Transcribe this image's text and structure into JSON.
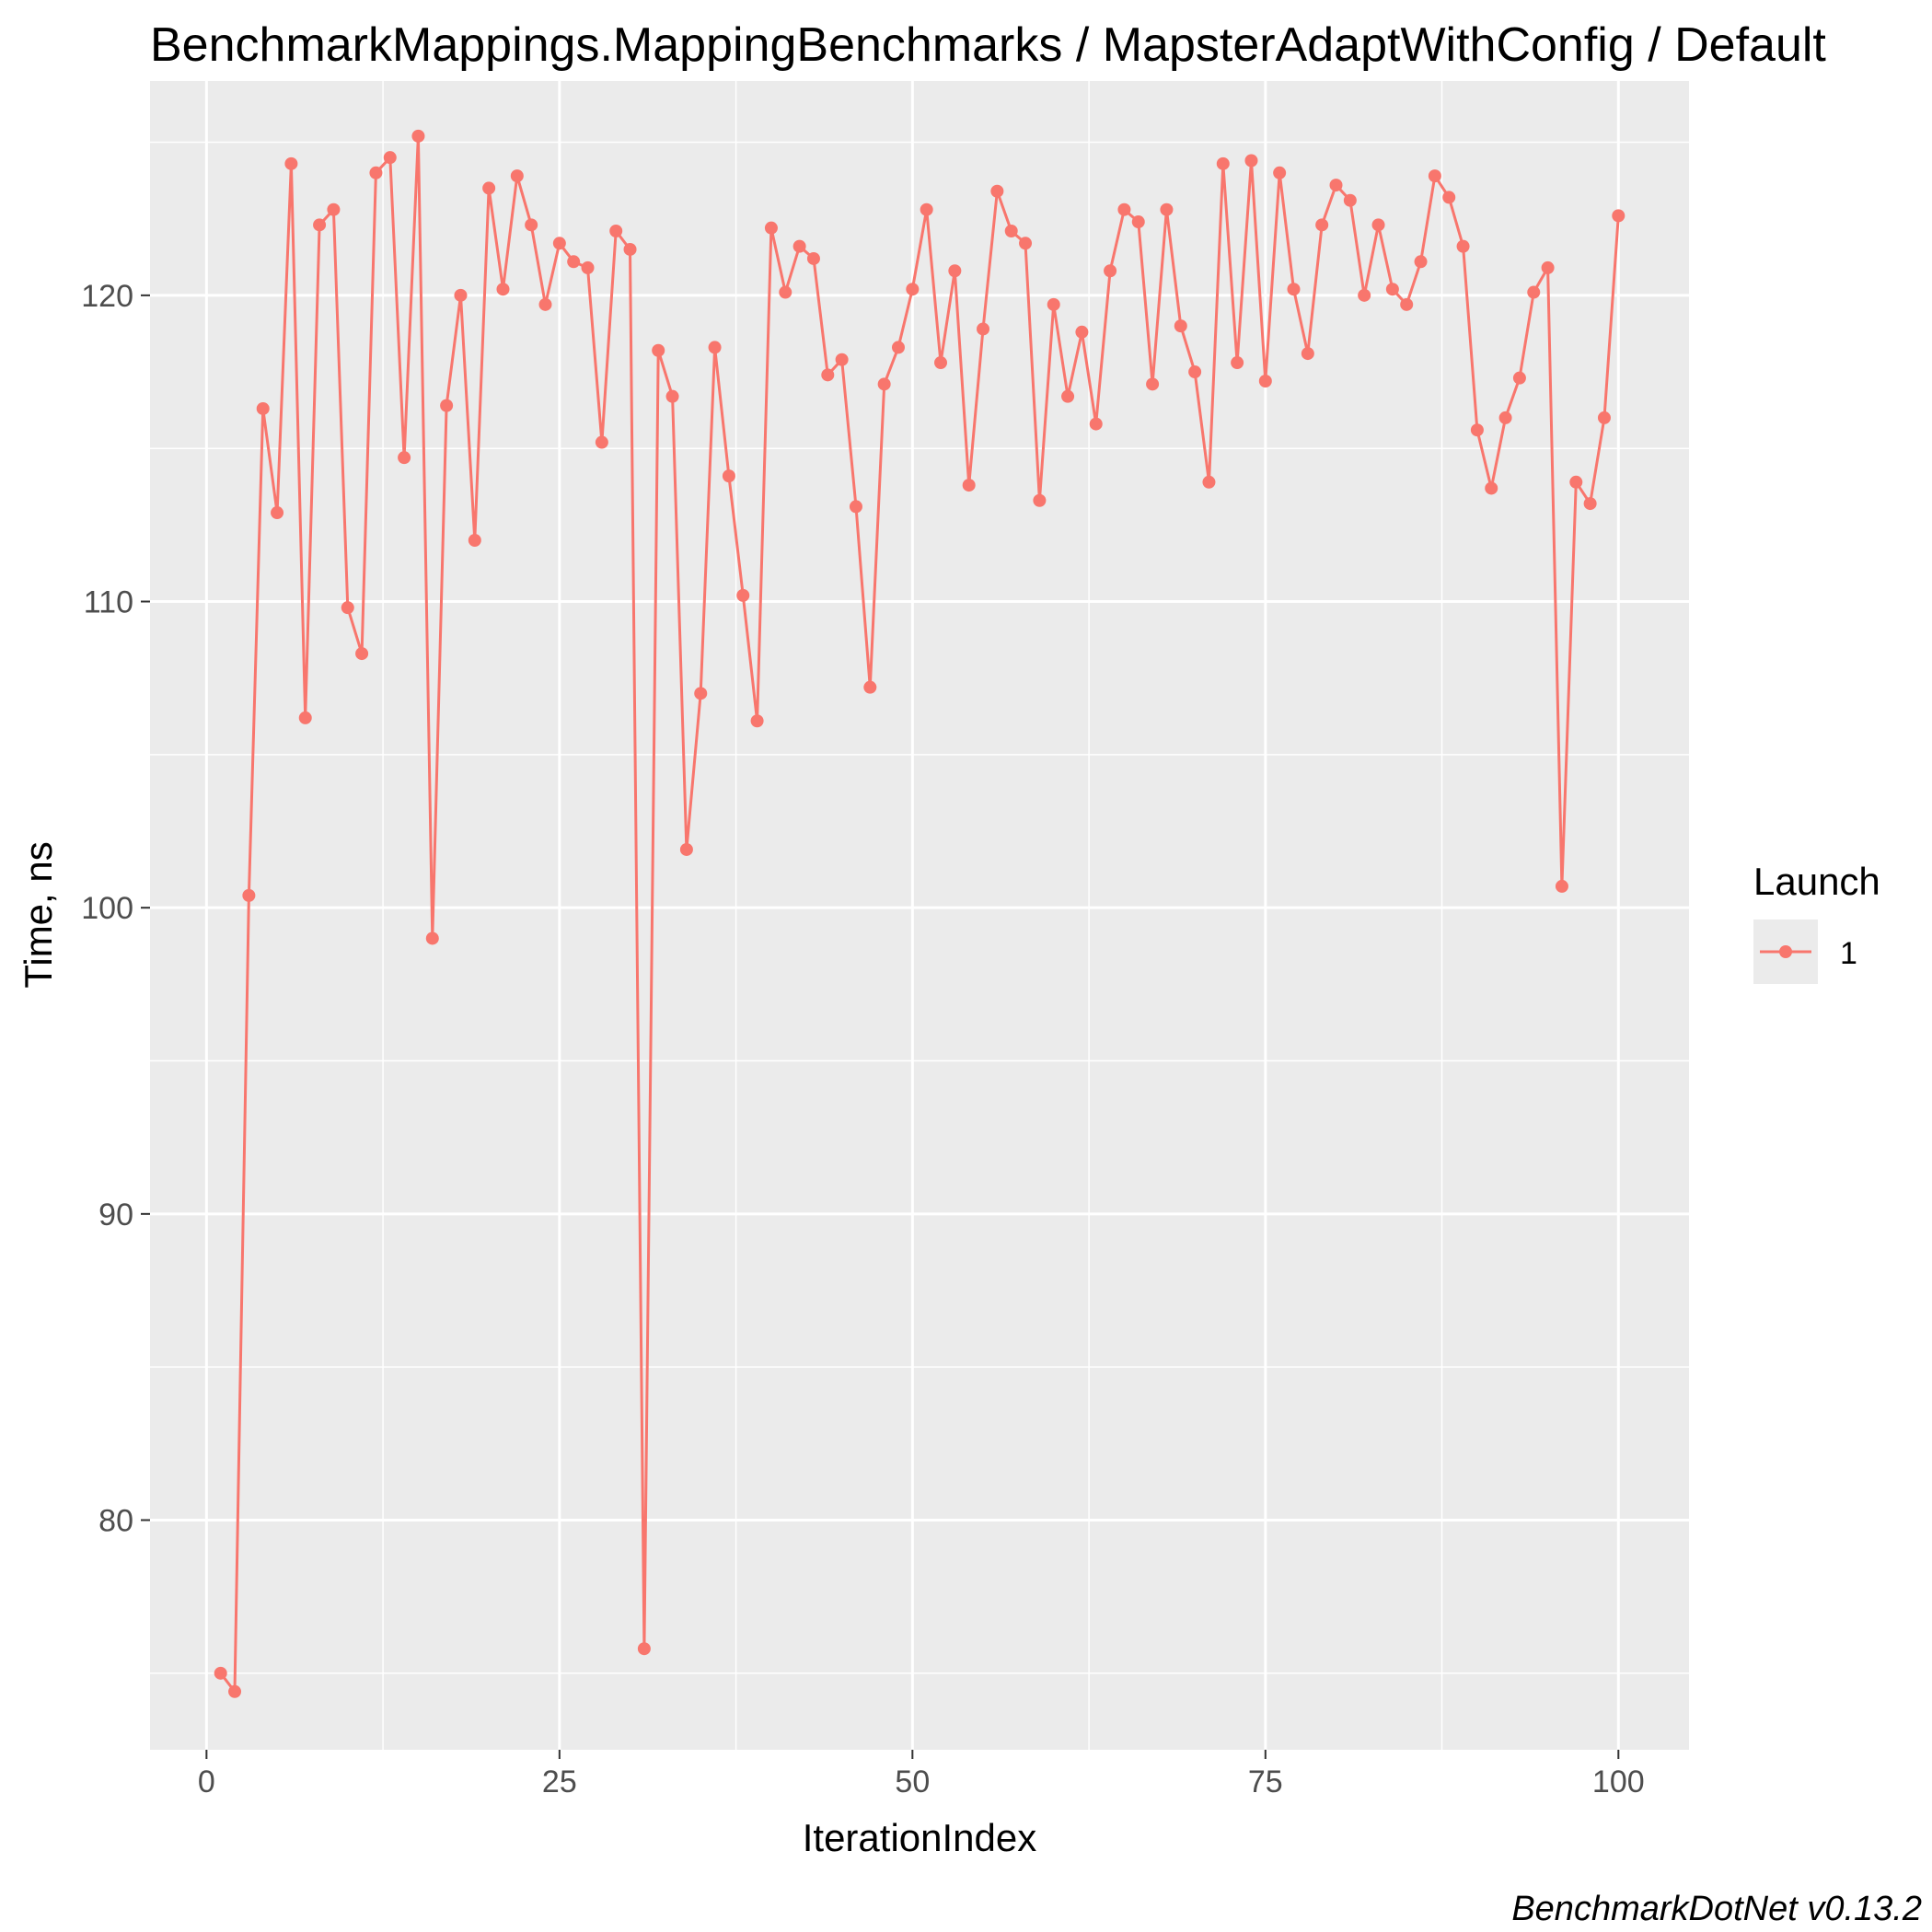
{
  "chart_data": {
    "type": "line",
    "title": "BenchmarkMappings.MappingBenchmarks / MapsterAdaptWithConfig / Default",
    "xlabel": "IterationIndex",
    "ylabel": "Time, ns",
    "caption": "BenchmarkDotNet v0.13.2",
    "xlim": [
      -4,
      105
    ],
    "ylim": [
      72.5,
      127
    ],
    "x_ticks": [
      0,
      25,
      50,
      75,
      100
    ],
    "y_ticks": [
      80,
      90,
      100,
      110,
      120
    ],
    "x_tick_labels": [
      "0",
      "25",
      "50",
      "75",
      "100"
    ],
    "y_tick_labels": [
      "80",
      "90",
      "100",
      "110",
      "120"
    ],
    "grid": true,
    "legend": {
      "title": "Launch",
      "position": "right",
      "entries": [
        "1"
      ]
    },
    "series": [
      {
        "name": "1",
        "color": "#f8766d",
        "x": [
          1,
          2,
          3,
          4,
          5,
          6,
          7,
          8,
          9,
          10,
          11,
          12,
          13,
          14,
          15,
          16,
          17,
          18,
          19,
          20,
          21,
          22,
          23,
          24,
          25,
          26,
          27,
          28,
          29,
          30,
          31,
          32,
          33,
          34,
          35,
          36,
          37,
          38,
          39,
          40,
          41,
          42,
          43,
          44,
          45,
          46,
          47,
          48,
          49,
          50,
          51,
          52,
          53,
          54,
          55,
          56,
          57,
          58,
          59,
          60,
          61,
          62,
          63,
          64,
          65,
          66,
          67,
          68,
          69,
          70,
          71,
          72,
          73,
          74,
          75,
          76,
          77,
          78,
          79,
          80,
          81,
          82,
          83,
          84,
          85,
          86,
          87,
          88,
          89,
          90,
          91,
          92,
          93,
          94,
          95,
          96,
          97,
          98,
          99,
          100
        ],
        "values": [
          75.0,
          74.4,
          100.4,
          116.3,
          112.9,
          124.3,
          106.2,
          122.3,
          122.8,
          109.8,
          108.3,
          124.0,
          124.5,
          114.7,
          125.2,
          99.0,
          116.4,
          120.0,
          112.0,
          123.5,
          120.2,
          123.9,
          122.3,
          119.7,
          121.7,
          121.1,
          120.9,
          115.2,
          122.1,
          121.5,
          75.8,
          118.2,
          116.7,
          101.9,
          107.0,
          118.3,
          114.1,
          110.2,
          106.1,
          122.2,
          120.1,
          121.6,
          121.2,
          117.4,
          117.9,
          113.1,
          107.2,
          117.1,
          118.3,
          120.2,
          122.8,
          117.8,
          120.8,
          113.8,
          118.9,
          123.4,
          122.1,
          121.7,
          113.3,
          119.7,
          116.7,
          118.8,
          115.8,
          120.8,
          122.8,
          122.4,
          117.1,
          122.8,
          119.0,
          117.5,
          113.9,
          124.3,
          117.8,
          124.4,
          117.2,
          124.0,
          120.2,
          118.1,
          122.3,
          123.6,
          123.1,
          120.0,
          122.3,
          120.2,
          119.7,
          121.1,
          123.9,
          123.2,
          121.6,
          115.6,
          113.7,
          116.0,
          117.3,
          120.1,
          120.9,
          100.7,
          113.9,
          113.2,
          116.0,
          122.6
        ]
      }
    ]
  }
}
